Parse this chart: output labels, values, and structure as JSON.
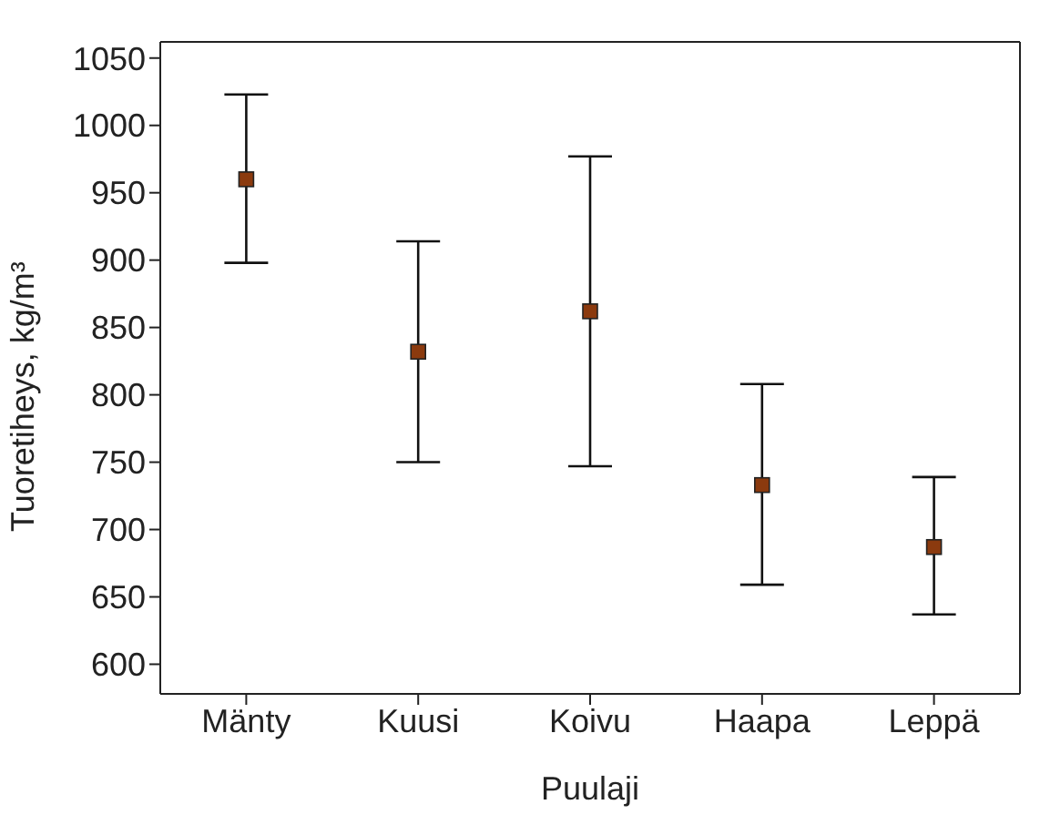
{
  "chart_data": {
    "type": "scatter",
    "xlabel": "Puulaji",
    "ylabel": "Tuoretiheys, kg/m³",
    "categories": [
      "Mänty",
      "Kuusi",
      "Koivu",
      "Haapa",
      "Leppä"
    ],
    "values": [
      960,
      832,
      862,
      733,
      687
    ],
    "errors": [
      [
        898,
        1023
      ],
      [
        750,
        914
      ],
      [
        747,
        977
      ],
      [
        659,
        808
      ],
      [
        637,
        739
      ]
    ],
    "color": "#8b3a0e",
    "marker": "square",
    "grid": false,
    "legend": false,
    "ylim": [
      578,
      1062
    ],
    "yticks": [
      600,
      650,
      700,
      750,
      800,
      850,
      900,
      950,
      1000,
      1050
    ]
  }
}
